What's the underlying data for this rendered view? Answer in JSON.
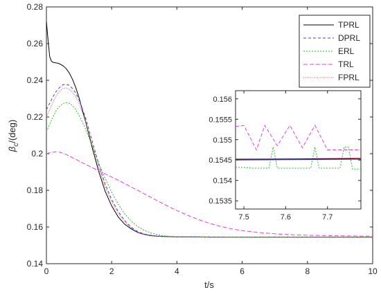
{
  "chart_data": [
    {
      "type": "line",
      "title": "",
      "xlabel": "t/s",
      "ylabel_main": "β",
      "ylabel_sub": "c",
      "ylabel_suffix": "/(deg)",
      "xlim": [
        0,
        10
      ],
      "ylim": [
        0.14,
        0.28
      ],
      "xticks": [
        0,
        2,
        4,
        6,
        8,
        10
      ],
      "xtick_labels": [
        "0",
        "2",
        "4",
        "6",
        "8",
        "10"
      ],
      "yticks": [
        0.14,
        0.16,
        0.18,
        0.2,
        0.22,
        0.24,
        0.26,
        0.28
      ],
      "ytick_labels": [
        "0.14",
        "0.16",
        "0.18",
        "0.2",
        "0.22",
        "0.24",
        "0.26",
        "0.28"
      ],
      "grid": false,
      "legend_position": "top-right",
      "series": [
        {
          "name": "TPRL",
          "color": "#000000",
          "dash": "solid",
          "x": [
            0,
            0.05,
            0.1,
            0.15,
            0.2,
            0.3,
            0.4,
            0.5,
            0.6,
            0.7,
            0.8,
            0.9,
            1.0,
            1.2,
            1.4,
            1.6,
            1.8,
            2.0,
            2.2,
            2.4,
            2.6,
            2.8,
            3.0,
            3.2,
            3.4,
            3.6,
            3.8,
            4.0,
            4.5,
            5,
            6,
            7,
            8,
            9,
            10
          ],
          "y": [
            0.272,
            0.262,
            0.253,
            0.2505,
            0.2498,
            0.2495,
            0.249,
            0.248,
            0.2465,
            0.244,
            0.2405,
            0.236,
            0.2305,
            0.2175,
            0.2035,
            0.1905,
            0.1795,
            0.1715,
            0.1655,
            0.1615,
            0.159,
            0.157,
            0.156,
            0.1553,
            0.155,
            0.1548,
            0.1547,
            0.1546,
            0.1546,
            0.1545,
            0.1545,
            0.1545,
            0.1545,
            0.1545,
            0.1545
          ]
        },
        {
          "name": "DPRL",
          "color": "#4040d0",
          "dash": "4,3",
          "x": [
            0,
            0.1,
            0.2,
            0.3,
            0.4,
            0.5,
            0.6,
            0.7,
            0.8,
            0.9,
            1.0,
            1.2,
            1.4,
            1.6,
            1.8,
            2.0,
            2.2,
            2.4,
            2.6,
            2.8,
            3.0,
            3.2,
            3.4,
            3.6,
            3.8,
            4.0,
            4.5,
            5,
            6,
            7,
            8,
            9,
            10
          ],
          "y": [
            0.224,
            0.2275,
            0.231,
            0.234,
            0.236,
            0.2375,
            0.2378,
            0.2372,
            0.2355,
            0.233,
            0.2295,
            0.2195,
            0.207,
            0.1945,
            0.1835,
            0.175,
            0.1685,
            0.1635,
            0.1598,
            0.1575,
            0.1562,
            0.1555,
            0.1551,
            0.1549,
            0.1548,
            0.1547,
            0.1546,
            0.1546,
            0.1545,
            0.1545,
            0.1545,
            0.1545,
            0.1545
          ]
        },
        {
          "name": "ERL",
          "color": "#20c020",
          "dash": "2,2",
          "x": [
            0,
            0.1,
            0.2,
            0.3,
            0.4,
            0.5,
            0.6,
            0.7,
            0.8,
            0.9,
            1.0,
            1.2,
            1.4,
            1.6,
            1.8,
            2.0,
            2.2,
            2.4,
            2.6,
            2.8,
            3.0,
            3.2,
            3.4,
            3.6,
            3.8,
            4.0,
            4.5,
            5,
            6,
            7,
            8,
            9,
            10
          ],
          "y": [
            0.212,
            0.216,
            0.22,
            0.2235,
            0.2258,
            0.2272,
            0.2278,
            0.2275,
            0.2262,
            0.224,
            0.221,
            0.2135,
            0.2045,
            0.195,
            0.1865,
            0.179,
            0.1725,
            0.1672,
            0.1632,
            0.1603,
            0.1582,
            0.1568,
            0.1558,
            0.1552,
            0.1549,
            0.1547,
            0.1546,
            0.1545,
            0.1545,
            0.1545,
            0.1545,
            0.1545,
            0.1545
          ]
        },
        {
          "name": "TRL",
          "color": "#e040e0",
          "dash": "6,3",
          "x": [
            0,
            0.1,
            0.2,
            0.3,
            0.4,
            0.5,
            0.6,
            0.7,
            0.8,
            1.0,
            1.2,
            1.4,
            1.6,
            1.8,
            2.0,
            2.2,
            2.4,
            2.6,
            2.8,
            3.0,
            3.2,
            3.4,
            3.6,
            3.8,
            4.0,
            4.2,
            4.4,
            4.6,
            4.8,
            5.0,
            5.2,
            5.4,
            5.6,
            5.8,
            6.0,
            6.5,
            7,
            7.5,
            8,
            9,
            10
          ],
          "y": [
            0.2,
            0.2005,
            0.2008,
            0.201,
            0.2008,
            0.2003,
            0.1996,
            0.1988,
            0.1978,
            0.196,
            0.1942,
            0.1924,
            0.1907,
            0.189,
            0.1873,
            0.1855,
            0.1837,
            0.1818,
            0.18,
            0.1781,
            0.1762,
            0.1743,
            0.1725,
            0.1707,
            0.169,
            0.1674,
            0.1659,
            0.1645,
            0.1632,
            0.162,
            0.161,
            0.1601,
            0.1593,
            0.1586,
            0.158,
            0.157,
            0.1563,
            0.1558,
            0.1555,
            0.1552,
            0.155
          ]
        },
        {
          "name": "FPRL",
          "color": "#d05050",
          "dash": "1,1.5",
          "x": [
            0,
            0.1,
            0.2,
            0.3,
            0.4,
            0.5,
            0.6,
            0.7,
            0.8,
            0.9,
            1.0,
            1.2,
            1.4,
            1.6,
            1.8,
            2.0,
            2.2,
            2.4,
            2.6,
            2.8,
            3.0,
            3.2,
            3.4,
            3.6,
            3.8,
            4.0,
            4.5,
            5,
            6,
            7,
            8,
            9,
            10
          ],
          "y": [
            0.22,
            0.224,
            0.2282,
            0.2315,
            0.234,
            0.2355,
            0.2358,
            0.2352,
            0.2335,
            0.231,
            0.2275,
            0.2175,
            0.2052,
            0.1928,
            0.182,
            0.1737,
            0.1675,
            0.1628,
            0.1594,
            0.1572,
            0.156,
            0.1553,
            0.155,
            0.1548,
            0.1547,
            0.1546,
            0.1546,
            0.1545,
            0.1545,
            0.1545,
            0.1545,
            0.1545,
            0.1545
          ]
        }
      ]
    },
    {
      "type": "line",
      "title": "",
      "xlabel": "",
      "ylabel": "",
      "xlim": [
        7.48,
        7.78
      ],
      "ylim": [
        0.1533,
        0.1562
      ],
      "xticks": [
        7.5,
        7.6,
        7.7
      ],
      "xtick_labels": [
        "7.5",
        "7.6",
        "7.7"
      ],
      "yticks": [
        0.1535,
        0.154,
        0.1545,
        0.155,
        0.1555,
        0.156
      ],
      "ytick_labels": [
        "0.1535",
        "0.154",
        "0.1545",
        "0.155",
        "0.1555",
        "0.156"
      ],
      "grid": false,
      "series": [
        {
          "name": "TRL",
          "color": "#e040e0",
          "dash": "5,3",
          "x": [
            7.48,
            7.5,
            7.53,
            7.55,
            7.58,
            7.61,
            7.64,
            7.67,
            7.7,
            7.73,
            7.76,
            7.78
          ],
          "y": [
            0.15532,
            0.15535,
            0.15475,
            0.15535,
            0.15485,
            0.15535,
            0.1548,
            0.15535,
            0.15475,
            0.15475,
            0.15475,
            0.15475
          ]
        },
        {
          "name": "ERL",
          "color": "#20c020",
          "dash": "2,2",
          "x": [
            7.48,
            7.5,
            7.52,
            7.56,
            7.57,
            7.58,
            7.6,
            7.63,
            7.66,
            7.67,
            7.68,
            7.7,
            7.73,
            7.74,
            7.75,
            7.76,
            7.78
          ],
          "y": [
            0.15432,
            0.15432,
            0.1543,
            0.1543,
            0.15482,
            0.1543,
            0.1543,
            0.1543,
            0.1543,
            0.15482,
            0.1543,
            0.1543,
            0.1543,
            0.15482,
            0.15482,
            0.15428,
            0.15428
          ]
        },
        {
          "name": "FPRL",
          "color": "#d05050",
          "dash": "solid",
          "x": [
            7.48,
            7.78
          ],
          "y": [
            0.15451,
            0.15455
          ]
        },
        {
          "name": "TPRL",
          "color": "#000000",
          "dash": "solid",
          "x": [
            7.48,
            7.78
          ],
          "y": [
            0.15452,
            0.15453
          ]
        },
        {
          "name": "DPRL",
          "color": "#4040d0",
          "dash": "solid",
          "x": [
            7.48,
            7.78
          ],
          "y": [
            0.1545,
            0.15452
          ]
        }
      ]
    }
  ]
}
